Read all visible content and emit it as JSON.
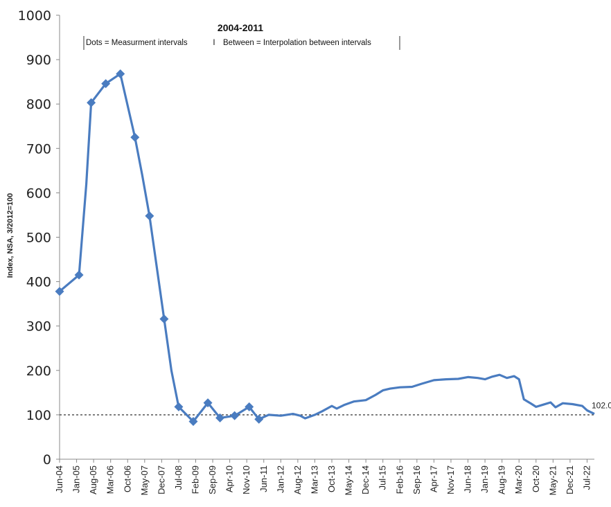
{
  "chart_data": {
    "type": "line",
    "title": "2004-2011",
    "note_left": "Dots = Measurment intervals",
    "note_sep": "I",
    "note_right": "Between = Interpolation between intervals",
    "ylabel": "Index, NSA, 3/2012=100",
    "xlabel": "",
    "ylim": [
      0,
      1000
    ],
    "yticks": [
      0,
      100,
      200,
      300,
      400,
      500,
      600,
      700,
      800,
      900,
      1000
    ],
    "xtick_labels": [
      "Jun-04",
      "Jan-05",
      "Aug-05",
      "Mar-06",
      "Oct-06",
      "May-07",
      "Dec-07",
      "Jul-08",
      "Feb-09",
      "Sep-09",
      "Apr-10",
      "Nov-10",
      "Jun-11",
      "Jan-12",
      "Aug-12",
      "Mar-13",
      "Oct-13",
      "May-14",
      "Dec-14",
      "Jul-15",
      "Feb-16",
      "Sep-16",
      "Apr-17",
      "Nov-17",
      "Jun-18",
      "Jan-19",
      "Aug-19",
      "Mar-20",
      "Oct-20",
      "May-21",
      "Dec-21",
      "Jul-22"
    ],
    "x_range": [
      "Jun-04",
      "Oct-22"
    ],
    "reference_line": {
      "value": 100,
      "style": "dotted"
    },
    "end_label": "102.0",
    "color": "#4a7cc0",
    "markers": [
      {
        "x": "Jun-04",
        "y": 378
      },
      {
        "x": "Feb-05",
        "y": 415
      },
      {
        "x": "Jul-05",
        "y": 803
      },
      {
        "x": "Jan-06",
        "y": 846
      },
      {
        "x": "Jul-06",
        "y": 868
      },
      {
        "x": "Jan-07",
        "y": 725
      },
      {
        "x": "Jul-07",
        "y": 548
      },
      {
        "x": "Jan-08",
        "y": 316
      },
      {
        "x": "Jul-08",
        "y": 118
      },
      {
        "x": "Jan-09",
        "y": 85
      },
      {
        "x": "Jul-09",
        "y": 127
      },
      {
        "x": "Dec-09",
        "y": 93
      },
      {
        "x": "Jun-10",
        "y": 98
      },
      {
        "x": "Dec-10",
        "y": 118
      },
      {
        "x": "Apr-11",
        "y": 90
      }
    ],
    "series": [
      {
        "values": [
          {
            "x": "Jun-04",
            "y": 378
          },
          {
            "x": "Feb-05",
            "y": 415
          },
          {
            "x": "May-05",
            "y": 620
          },
          {
            "x": "Jul-05",
            "y": 803
          },
          {
            "x": "Jan-06",
            "y": 846
          },
          {
            "x": "Jul-06",
            "y": 868
          },
          {
            "x": "Jan-07",
            "y": 725
          },
          {
            "x": "Apr-07",
            "y": 640
          },
          {
            "x": "Jul-07",
            "y": 548
          },
          {
            "x": "Jan-08",
            "y": 316
          },
          {
            "x": "Apr-08",
            "y": 200
          },
          {
            "x": "Jul-08",
            "y": 118
          },
          {
            "x": "Jan-09",
            "y": 85
          },
          {
            "x": "Jul-09",
            "y": 127
          },
          {
            "x": "Dec-09",
            "y": 93
          },
          {
            "x": "Jun-10",
            "y": 98
          },
          {
            "x": "Dec-10",
            "y": 118
          },
          {
            "x": "Apr-11",
            "y": 90
          },
          {
            "x": "Aug-11",
            "y": 100
          },
          {
            "x": "Jan-12",
            "y": 98
          },
          {
            "x": "Jun-12",
            "y": 102
          },
          {
            "x": "Sep-12",
            "y": 98
          },
          {
            "x": "Nov-12",
            "y": 92
          },
          {
            "x": "Jan-13",
            "y": 96
          },
          {
            "x": "Mar-13",
            "y": 100
          },
          {
            "x": "Jun-13",
            "y": 108
          },
          {
            "x": "Oct-13",
            "y": 120
          },
          {
            "x": "Dec-13",
            "y": 114
          },
          {
            "x": "Mar-14",
            "y": 122
          },
          {
            "x": "Jul-14",
            "y": 130
          },
          {
            "x": "Dec-14",
            "y": 133
          },
          {
            "x": "Apr-15",
            "y": 145
          },
          {
            "x": "Jul-15",
            "y": 155
          },
          {
            "x": "Oct-15",
            "y": 159
          },
          {
            "x": "Feb-16",
            "y": 162
          },
          {
            "x": "Jul-16",
            "y": 163
          },
          {
            "x": "Nov-16",
            "y": 170
          },
          {
            "x": "Apr-17",
            "y": 178
          },
          {
            "x": "Sep-17",
            "y": 180
          },
          {
            "x": "Feb-18",
            "y": 181
          },
          {
            "x": "Jun-18",
            "y": 185
          },
          {
            "x": "Oct-18",
            "y": 183
          },
          {
            "x": "Jan-19",
            "y": 180
          },
          {
            "x": "Apr-19",
            "y": 186
          },
          {
            "x": "Jul-19",
            "y": 190
          },
          {
            "x": "Oct-19",
            "y": 183
          },
          {
            "x": "Jan-20",
            "y": 187
          },
          {
            "x": "Mar-20",
            "y": 180
          },
          {
            "x": "May-20",
            "y": 135
          },
          {
            "x": "Aug-20",
            "y": 125
          },
          {
            "x": "Oct-20",
            "y": 118
          },
          {
            "x": "Jan-21",
            "y": 123
          },
          {
            "x": "Apr-21",
            "y": 128
          },
          {
            "x": "Jun-21",
            "y": 117
          },
          {
            "x": "Sep-21",
            "y": 126
          },
          {
            "x": "Jan-22",
            "y": 124
          },
          {
            "x": "May-22",
            "y": 120
          },
          {
            "x": "Jul-22",
            "y": 110
          },
          {
            "x": "Oct-22",
            "y": 102
          }
        ]
      }
    ]
  }
}
